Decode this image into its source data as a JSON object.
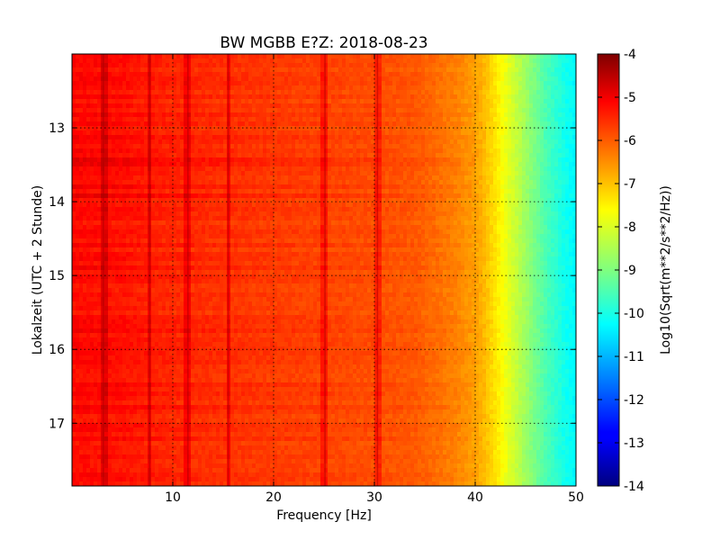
{
  "chart_data": {
    "type": "heatmap",
    "title": "BW MGBB E?Z: 2018-08-23",
    "xlabel": "Frequency [Hz]",
    "ylabel": "Lokalzeit (UTC + 2 Stunde)",
    "xlim": [
      0,
      50
    ],
    "ylim": [
      12.0,
      17.85
    ],
    "y_inverted": true,
    "x_ticks": [
      "10",
      "20",
      "30",
      "40",
      "50"
    ],
    "x_tick_values": [
      10,
      20,
      30,
      40,
      50
    ],
    "y_ticks": [
      "13",
      "14",
      "15",
      "16",
      "17"
    ],
    "y_tick_values": [
      13,
      14,
      15,
      16,
      17
    ],
    "grid": true,
    "colorbar": {
      "label": "Log10(Sqrt(m**2/s**2/Hz))",
      "colormap": "jet",
      "range": [
        -14,
        -4
      ],
      "ticks": [
        "-4",
        "-5",
        "-6",
        "-7",
        "-8",
        "-9",
        "-10",
        "-11",
        "-12",
        "-13",
        "-14"
      ],
      "tick_values": [
        -4,
        -5,
        -6,
        -7,
        -8,
        -9,
        -10,
        -11,
        -12,
        -13,
        -14
      ]
    },
    "spectral_profile": {
      "frequency_hz": [
        0,
        5,
        10,
        15,
        20,
        25,
        30,
        34,
        36,
        38,
        40,
        41,
        42,
        43,
        44,
        45,
        46,
        47,
        48,
        49,
        50
      ],
      "log_amplitude": [
        -5.3,
        -5.4,
        -5.6,
        -5.7,
        -5.8,
        -5.9,
        -6.0,
        -6.1,
        -6.3,
        -6.5,
        -6.8,
        -7.1,
        -7.5,
        -7.9,
        -8.3,
        -8.7,
        -9.1,
        -9.5,
        -9.8,
        -10.1,
        -10.3
      ]
    },
    "persistent_lines_hz": [
      3.1,
      7.7,
      11.5,
      15.5,
      25.1,
      30.3
    ]
  }
}
